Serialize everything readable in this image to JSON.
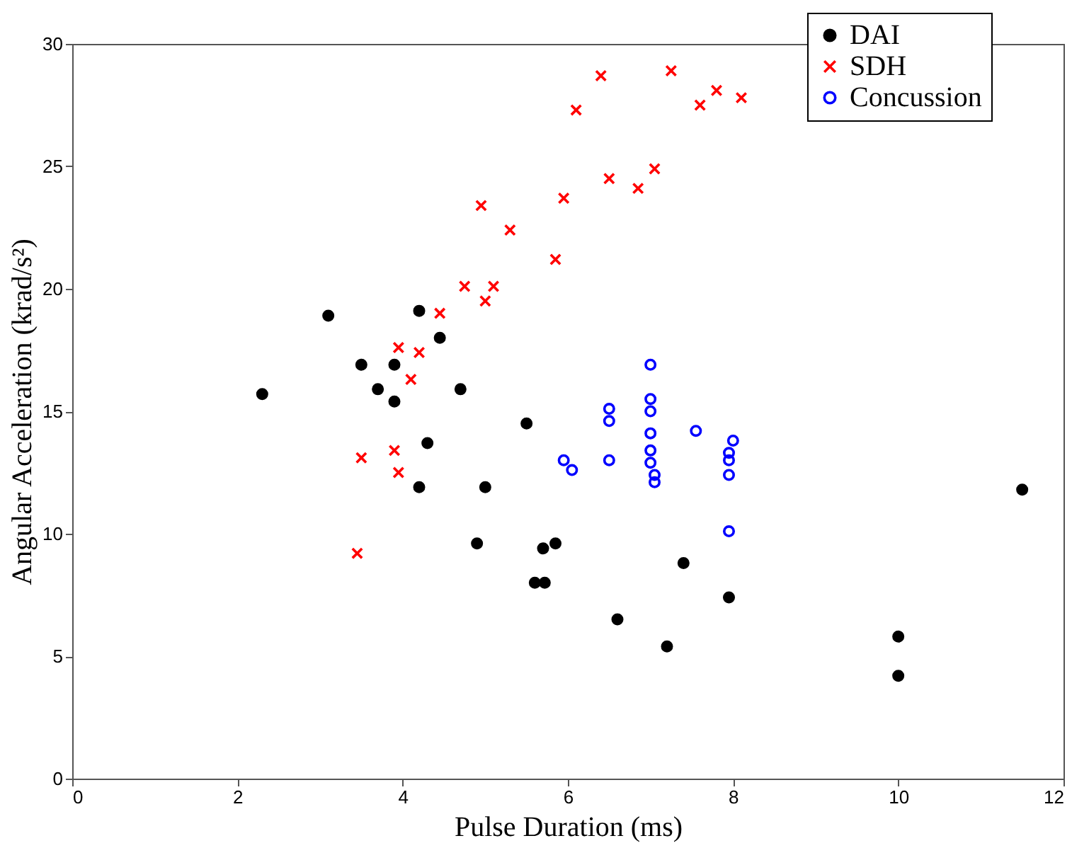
{
  "chart_data": {
    "type": "scatter",
    "xlabel": "Pulse Duration (ms)",
    "ylabel": "Angular Acceleration (krad/s²)",
    "xlim": [
      0,
      12
    ],
    "xticks": [
      0,
      2,
      4,
      6,
      8,
      10,
      12
    ],
    "ylim": [
      0,
      30
    ],
    "yticks": [
      0,
      5,
      10,
      15,
      20,
      25,
      30
    ],
    "grid": false,
    "legend": "top right",
    "series": [
      {
        "name": "DAI",
        "color": "#000000",
        "marker": "circle",
        "x": [
          2.3,
          3.1,
          3.5,
          3.7,
          3.9,
          3.9,
          4.2,
          4.45,
          4.3,
          4.2,
          4.7,
          5.0,
          5.5,
          4.9,
          5.7,
          5.85,
          5.6,
          5.72,
          6.6,
          7.2,
          7.4,
          7.95,
          10,
          10,
          11.5
        ],
        "values": [
          15.7,
          18.9,
          16.9,
          15.9,
          16.9,
          15.4,
          19.1,
          18.0,
          13.7,
          11.9,
          15.9,
          11.9,
          14.5,
          9.6,
          9.4,
          9.6,
          8.0,
          8.0,
          6.5,
          5.4,
          8.8,
          7.4,
          5.8,
          4.2,
          11.8
        ]
      },
      {
        "name": "SDH",
        "color": "#ff0000",
        "marker": "cross",
        "x": [
          3.45,
          3.5,
          3.9,
          3.95,
          3.95,
          4.1,
          4.2,
          4.45,
          4.75,
          5.0,
          5.1,
          4.95,
          5.3,
          5.85,
          5.95,
          6.5,
          6.1,
          6.4,
          6.85,
          7.05,
          7.25,
          7.6,
          7.8,
          8.1
        ],
        "values": [
          9.2,
          13.1,
          13.4,
          12.5,
          17.6,
          16.3,
          17.4,
          19.0,
          20.1,
          19.5,
          20.1,
          23.4,
          22.4,
          21.2,
          23.7,
          24.5,
          27.3,
          28.7,
          24.1,
          24.9,
          28.9,
          27.5,
          28.1,
          27.8
        ]
      },
      {
        "name": "Concussion",
        "color": "#0000ff",
        "marker": "circle",
        "x": [
          5.95,
          6.05,
          6.5,
          6.5,
          6.5,
          7.0,
          7.0,
          7.0,
          7.0,
          7.0,
          7.0,
          7.05,
          7.05,
          7.55,
          8.0,
          7.95,
          7.95,
          7.95,
          7.95
        ],
        "values": [
          13.0,
          12.6,
          15.1,
          14.6,
          13.0,
          16.9,
          15.5,
          15.0,
          14.1,
          13.4,
          12.9,
          12.4,
          12.1,
          14.2,
          13.8,
          13.3,
          13.0,
          12.4,
          10.1
        ]
      }
    ]
  }
}
